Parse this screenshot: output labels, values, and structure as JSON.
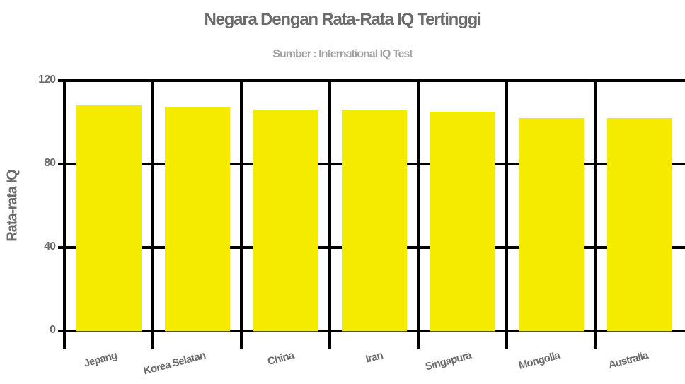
{
  "chart_data": {
    "type": "bar",
    "title": "Negara Dengan Rata-Rata IQ Tertinggi",
    "subtitle": "Sumber : International IQ Test",
    "xlabel": "",
    "ylabel": "Rata-rata IQ",
    "ylim": [
      0,
      120
    ],
    "yticks": [
      0,
      40,
      80,
      120
    ],
    "grid": true,
    "legend": "none",
    "bar_color": "#F5EB00",
    "categories": [
      "Jepang",
      "Korea Selatan",
      "China",
      "Iran",
      "Singapura",
      "Mongolia",
      "Australia"
    ],
    "values": [
      108,
      107,
      106,
      106,
      105,
      102,
      102
    ]
  },
  "colors": {
    "bar": "#F5EB00",
    "grid": "#000000",
    "title": "#6b6b6b",
    "subtitle": "#a3a3a3"
  }
}
